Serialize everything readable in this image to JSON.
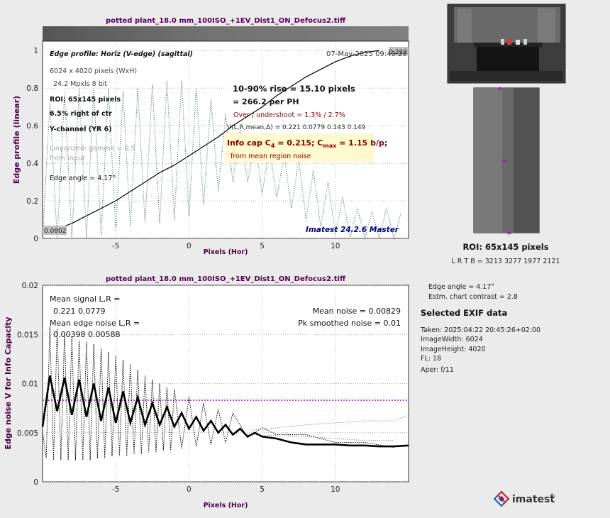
{
  "colors": {
    "title": "#5a005a",
    "axis_label": "#4a0046",
    "edge_black": "#000000",
    "edge_gray_dotted": "#2f5a5a",
    "noise_red_dotted": "#c05050",
    "noise_green_dotted": "#3b7a3b",
    "mean_noise_line": "#c040c0",
    "rise_text": "#8b0000",
    "info_box_bg": "#fffacd",
    "imatest_blue": "#00008b"
  },
  "edge_chart": {
    "title": "potted plant_18.0 mm_100ISO_+1EV_Dist1_ON_Defocus2.tiff",
    "header": "Edge profile: Horiz (V-edge) (sagittal)",
    "date": "07-May-2025 09:49:20",
    "pixels": "6024 x 4020 pixels (WxH)",
    "mpxls": "24.2 Mpxls   8 bit",
    "roi": "ROI:  65x145 pixels",
    "right_of_ctr": "6.5% right of ctr",
    "channel": "Y-channel  (YR 6)",
    "gamma": "Linearized: gamma = 0.5",
    "from_input": "from input",
    "edge_angle": "Edge angle = 4.17°",
    "rise": "10-90% rise = 15.10 pixels",
    "per_ph": "=  266.2 per PH",
    "overshoot": "Over / undershoot =  1.3% /  2.7%",
    "vstats": "V(L,R,mean,Δ) = 0.221  0.0779  0.143  0.149",
    "info_cap_a": "Info cap C",
    "info_cap_sub": "4",
    "info_cap_b": " = 0.215;  C",
    "info_cap_sub2": "max",
    "info_cap_c": " = 1.15 b/p;",
    "info_from": "from mean region noise",
    "corner_top": "0.222",
    "corner_bottom": "0.0802",
    "version": "Imatest 24.2.6 Master",
    "xlabel": "Pixels (Hor)",
    "ylabel": "Edge profile (linear)"
  },
  "noise_chart": {
    "title": "potted plant_18.0 mm_100ISO_+1EV_Dist1_ON_Defocus2.tiff",
    "mean_signal": "Mean signal L,R =",
    "mean_signal_vals": "0.221  0.0779",
    "mean_edge_noise": "Mean edge noise L,R =",
    "mean_edge_noise_vals": "0.00398  0.00588",
    "mean_noise": "Mean noise = 0.00829",
    "pk_noise": "Pk smoothed noise = 0.01",
    "xlabel": "Pixels (Hor)",
    "ylabel": "Edge noise V for Info Capacity"
  },
  "side": {
    "roi_label": "ROI:  65x145 pixels",
    "roi_coords": "L R  T B = 3213 3277  1977 2121",
    "edge_angle": "Edge angle = 4.17°",
    "contrast": "Estm. chart contrast = 2.8",
    "exif_title": "Selected EXIF data",
    "exif": [
      "Taken: 2025:04:22 20:45:26+02:00",
      "ImageWidth:  6024",
      "ImageHeight:  4020",
      "FL:   18",
      "Aper:  f/11"
    ],
    "logo": "imatest",
    "logo_mark": "®"
  },
  "chart_data": [
    {
      "type": "line",
      "title": "potted plant_18.0 mm_100ISO_+1EV_Dist1_ON_Defocus2.tiff",
      "xlabel": "Pixels (Hor)",
      "ylabel": "Edge profile (linear)",
      "xlim": [
        -10,
        15
      ],
      "ylim": [
        0,
        1.05
      ],
      "xticks": [
        -5,
        0,
        5,
        10
      ],
      "yticks": [
        0,
        0.2,
        0.4,
        0.6,
        0.8,
        1
      ],
      "grid": true,
      "series": [
        {
          "style": "solid",
          "x": [
            -10,
            -9,
            -8,
            -7,
            -6,
            -5,
            -4,
            -3,
            -2,
            -1,
            0,
            1,
            2,
            3,
            4,
            5,
            6,
            7,
            8,
            9,
            10,
            11,
            12,
            13
          ],
          "y": [
            0.03,
            0.05,
            0.08,
            0.12,
            0.16,
            0.2,
            0.25,
            0.3,
            0.35,
            0.39,
            0.44,
            0.49,
            0.54,
            0.6,
            0.65,
            0.7,
            0.76,
            0.81,
            0.86,
            0.9,
            0.94,
            0.97,
            0.99,
            1.0
          ]
        },
        {
          "style": "dotted",
          "x": [
            -10,
            -9.5,
            -9,
            -8.5,
            -8,
            -7.5,
            -7,
            -6.5,
            -6,
            -5.5,
            -5,
            -4.5,
            -4,
            -3.5,
            -3,
            -2.5,
            -2,
            -1.5,
            -1,
            -0.5,
            0,
            0.5,
            1,
            1.5,
            2,
            2.5,
            3,
            3.5,
            4,
            4.5,
            5,
            5.5,
            6,
            6.5,
            7,
            7.5,
            8,
            8.5,
            9,
            9.5,
            10,
            10.5,
            11,
            11.5,
            12,
            12.5,
            13,
            13.5,
            14,
            14.5
          ],
          "y": [
            0.0,
            0.72,
            0.0,
            0.78,
            0.0,
            0.8,
            0.0,
            0.8,
            0.02,
            0.8,
            0.04,
            0.78,
            0.06,
            0.8,
            0.08,
            0.82,
            0.08,
            0.84,
            0.1,
            0.84,
            0.12,
            0.8,
            0.18,
            0.74,
            0.25,
            0.66,
            0.3,
            0.58,
            0.3,
            0.52,
            0.24,
            0.48,
            0.22,
            0.44,
            0.16,
            0.42,
            0.1,
            0.36,
            0.06,
            0.3,
            0.02,
            0.22,
            0.0,
            0.16,
            0.0,
            0.14,
            0.0,
            0.16,
            0.0,
            0.14
          ]
        }
      ]
    },
    {
      "type": "line",
      "title": "potted plant_18.0 mm_100ISO_+1EV_Dist1_ON_Defocus2.tiff",
      "xlabel": "Pixels (Hor)",
      "ylabel": "Edge noise V for Info Capacity",
      "xlim": [
        -10,
        15
      ],
      "ylim": [
        0,
        0.02
      ],
      "xticks": [
        -5,
        0,
        5,
        10
      ],
      "yticks": [
        0,
        0.005,
        0.01,
        0.015,
        0.02
      ],
      "grid": true,
      "mean_noise": 0.00829,
      "series": [
        {
          "style": "solid-thick",
          "x": [
            -10,
            -9.5,
            -9,
            -8.5,
            -8,
            -7.5,
            -7,
            -6.5,
            -6,
            -5.5,
            -5,
            -4.5,
            -4,
            -3.5,
            -3,
            -2.5,
            -2,
            -1.5,
            -1,
            -0.5,
            0,
            0.5,
            1,
            1.5,
            2,
            2.5,
            3,
            3.5,
            4,
            4.5,
            5,
            6,
            7,
            8,
            9,
            10,
            11,
            12,
            13,
            14,
            15
          ],
          "y": [
            0.0056,
            0.0108,
            0.0072,
            0.0106,
            0.0068,
            0.0104,
            0.0066,
            0.01,
            0.0062,
            0.0096,
            0.006,
            0.0092,
            0.006,
            0.0086,
            0.0058,
            0.008,
            0.0058,
            0.0076,
            0.0056,
            0.007,
            0.0054,
            0.0066,
            0.0052,
            0.0062,
            0.005,
            0.0058,
            0.0048,
            0.0054,
            0.0046,
            0.005,
            0.0046,
            0.0044,
            0.004,
            0.0038,
            0.0038,
            0.0038,
            0.0037,
            0.0037,
            0.0036,
            0.0036,
            0.0037
          ]
        },
        {
          "style": "dotted",
          "x": [
            -10,
            -9.75,
            -9.5,
            -9.25,
            -9,
            -8.75,
            -8.5,
            -8.25,
            -8,
            -7.75,
            -7.5,
            -7.25,
            -7,
            -6.75,
            -6.5,
            -6.25,
            -6,
            -5.75,
            -5.5,
            -5.25,
            -5,
            -4.75,
            -4.5,
            -4.25,
            -4,
            -3.75,
            -3.5,
            -3.25,
            -3,
            -2.75,
            -2.5,
            -2.25,
            -2,
            -1.75,
            -1.5,
            -1.25,
            -1,
            -0.5,
            0,
            0.5,
            1,
            1.5,
            2,
            2.5,
            3,
            4,
            5,
            6,
            8,
            10,
            12,
            14
          ],
          "y": [
            0.005,
            0.0024,
            0.0158,
            0.0022,
            0.0156,
            0.0022,
            0.0152,
            0.0022,
            0.0148,
            0.0022,
            0.0144,
            0.0022,
            0.0142,
            0.0022,
            0.014,
            0.0024,
            0.0136,
            0.0024,
            0.0132,
            0.0026,
            0.0128,
            0.0026,
            0.0124,
            0.0026,
            0.012,
            0.0028,
            0.0114,
            0.0028,
            0.0108,
            0.003,
            0.0104,
            0.003,
            0.01,
            0.0032,
            0.0096,
            0.0032,
            0.0094,
            0.0034,
            0.0086,
            0.0036,
            0.008,
            0.0038,
            0.0074,
            0.004,
            0.007,
            0.0045,
            0.0055,
            0.0048,
            0.0048,
            0.004,
            0.004,
            0.0035
          ]
        },
        {
          "style": "dotted",
          "x": [
            4,
            6,
            8,
            10,
            12,
            14,
            15
          ],
          "y": [
            0.0052,
            0.0055,
            0.0058,
            0.006,
            0.0062,
            0.0062,
            0.0068
          ]
        },
        {
          "style": "dotted",
          "x": [
            4,
            6,
            8,
            10,
            12,
            14
          ],
          "y": [
            0.0048,
            0.0047,
            0.0046,
            0.0044,
            0.0042,
            0.0042
          ]
        }
      ]
    }
  ]
}
